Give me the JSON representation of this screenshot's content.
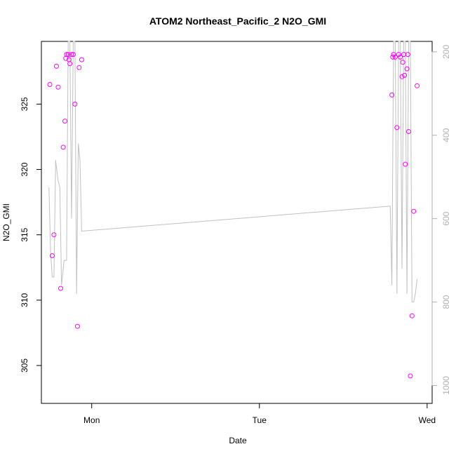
{
  "chart_data": {
    "type": "scatter",
    "title": "ATOM2 Northeast_Pacific_2 N2O_GMI",
    "xlabel": "Date",
    "ylabel": "N2O_GMI",
    "x_ticks": [
      "Mon",
      "Tue",
      "Wed"
    ],
    "y_ticks": [
      "305",
      "310",
      "315",
      "320",
      "325"
    ],
    "y2_ticks": [
      "200",
      "400",
      "600",
      "800",
      "1000"
    ],
    "xlim_days": [
      -0.3,
      2.03
    ],
    "ylim": [
      302.1,
      329.8
    ],
    "y2lim": [
      1043,
      175
    ],
    "grid": false,
    "legend": "none",
    "colors": {
      "points": "#ff00ff",
      "pressure_line": "#c0c0c0",
      "axis": "#000000",
      "right_axis": "#b0b0b0"
    },
    "series": [
      {
        "role": "N2O_GMI (left axis)",
        "mark": "open circle",
        "x_day_offsets": [
          -0.25,
          -0.235,
          -0.225,
          -0.21,
          -0.2,
          -0.185,
          -0.17,
          -0.16,
          -0.155,
          -0.15,
          -0.14,
          -0.135,
          -0.13,
          -0.12,
          -0.11,
          -0.1,
          -0.085,
          -0.075,
          -0.06,
          1.79,
          1.795,
          1.8,
          1.81,
          1.82,
          1.83,
          1.84,
          1.85,
          1.855,
          1.86,
          1.865,
          1.87,
          1.88,
          1.885,
          1.89,
          1.9,
          1.91,
          1.92,
          1.94
        ],
        "values": [
          326.5,
          313.4,
          315.0,
          327.9,
          326.3,
          310.9,
          321.7,
          323.7,
          328.5,
          328.8,
          328.8,
          328.4,
          328.1,
          328.8,
          328.8,
          325.0,
          308.0,
          327.8,
          328.4,
          325.7,
          328.6,
          328.8,
          328.6,
          323.2,
          328.8,
          328.6,
          327.1,
          328.2,
          328.8,
          327.2,
          320.4,
          327.7,
          328.8,
          322.9,
          304.2,
          308.8,
          316.8,
          326.4
        ]
      },
      {
        "role": "pressure (right axis, hPa)",
        "mark": "line",
        "x_day_offsets": [
          -0.255,
          -0.245,
          -0.235,
          -0.225,
          -0.215,
          -0.2,
          -0.19,
          -0.18,
          -0.165,
          -0.15,
          -0.14,
          -0.13,
          -0.12,
          -0.11,
          -0.1,
          -0.09,
          -0.08,
          -0.07,
          -0.06,
          1.78,
          1.79,
          1.8,
          1.81,
          1.82,
          1.83,
          1.84,
          1.85,
          1.86,
          1.87,
          1.88,
          1.89,
          1.9,
          1.91,
          1.92,
          1.93,
          1.94
        ],
        "values": [
          525,
          680,
          740,
          740,
          460,
          510,
          525,
          760,
          700,
          700,
          100,
          100,
          600,
          100,
          100,
          780,
          420,
          460,
          630,
          570,
          760,
          100,
          100,
          780,
          100,
          100,
          720,
          100,
          100,
          780,
          100,
          100,
          800,
          800,
          780,
          745
        ]
      }
    ]
  }
}
